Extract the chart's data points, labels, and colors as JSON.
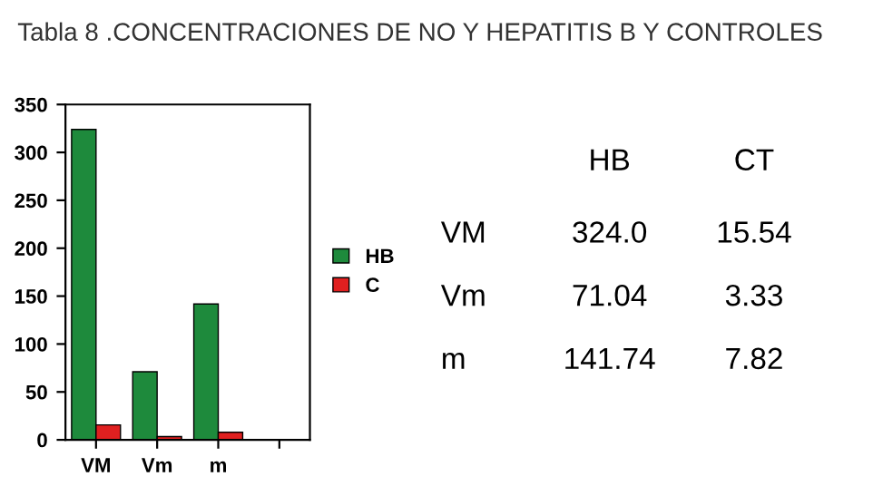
{
  "chart_data": [
    {
      "type": "bar",
      "title": "Tabla 8 .CONCENTRACIONES DE NO Y HEPATITIS B Y CONTROLES",
      "categories": [
        "VM",
        "Vm",
        "m",
        null
      ],
      "series": [
        {
          "name": "HB",
          "color": "#1e8a3c",
          "values": [
            324.0,
            71.04,
            141.74,
            null
          ]
        },
        {
          "name": "C",
          "color": "#e02020",
          "values": [
            15.54,
            3.33,
            7.82,
            null
          ]
        }
      ],
      "ylim": [
        0,
        350
      ],
      "yticks": [
        0,
        50,
        100,
        150,
        200,
        250,
        300,
        350
      ],
      "grid": false,
      "legend": "right"
    },
    {
      "type": "other",
      "data_labels": true,
      "categories": [
        "VM",
        "Vm",
        "m"
      ],
      "series": [
        {
          "name": "HB",
          "values": [
            324.0,
            71.04,
            141.74
          ],
          "value_labels": [
            "324.0",
            "71.04",
            "141.74"
          ]
        },
        {
          "name": "CT",
          "values": [
            15.54,
            3.33,
            7.82
          ]
        }
      ]
    }
  ]
}
